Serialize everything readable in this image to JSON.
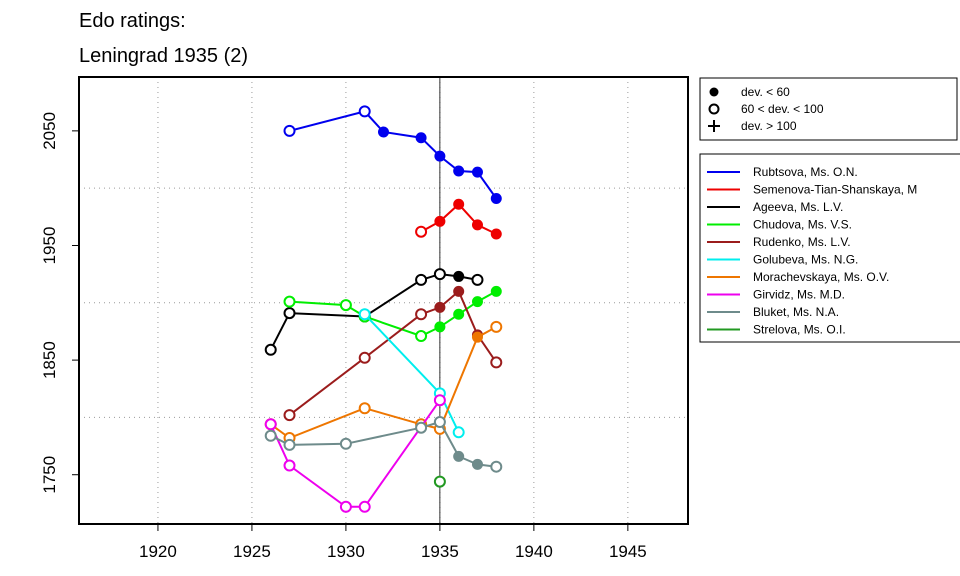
{
  "chart_data": {
    "type": "line",
    "title": [
      "Edo ratings:",
      "Leningrad 1935 (2)"
    ],
    "xlabel": "",
    "ylabel": "",
    "xlim": [
      1915.8,
      1948.2
    ],
    "ylim": [
      1707,
      2097
    ],
    "x_ticks": [
      1920,
      1925,
      1930,
      1935,
      1940,
      1945
    ],
    "y_ticks": [
      1750,
      1850,
      1950,
      2050
    ],
    "x_grid": [
      1920,
      1925,
      1930,
      1935,
      1940,
      1945
    ],
    "y_grid": [
      1800,
      1900,
      2000
    ],
    "grid": true,
    "reference_line_x": 1935,
    "legend_placement": "right",
    "deviation_legend": [
      {
        "marker": "filled",
        "label": "dev. < 60"
      },
      {
        "marker": "open",
        "label": "60 < dev. < 100"
      },
      {
        "marker": "plus",
        "label": "dev. > 100"
      }
    ],
    "series": [
      {
        "name": "Rubtsova, Ms. O.N.",
        "color": "#0000ee",
        "points": [
          [
            1927,
            2050,
            "o"
          ],
          [
            1931,
            2067,
            "o"
          ],
          [
            1932,
            2049,
            "f"
          ],
          [
            1934,
            2044,
            "f"
          ],
          [
            1935,
            2028,
            "f"
          ],
          [
            1936,
            2015,
            "f"
          ],
          [
            1937,
            2014,
            "f"
          ],
          [
            1938,
            1991,
            "f"
          ]
        ]
      },
      {
        "name": "Semenova-Tian-Shanskaya, M",
        "color": "#ee0000",
        "points": [
          [
            1934,
            1962,
            "o"
          ],
          [
            1935,
            1971,
            "f"
          ],
          [
            1936,
            1986,
            "f"
          ],
          [
            1937,
            1968,
            "f"
          ],
          [
            1938,
            1960,
            "f"
          ]
        ]
      },
      {
        "name": "Ageeva, Ms. L.V.",
        "color": "#000000",
        "points": [
          [
            1926,
            1859,
            "o"
          ],
          [
            1927,
            1891,
            "o"
          ],
          [
            1931,
            1888,
            "o"
          ],
          [
            1934,
            1920,
            "o"
          ],
          [
            1935,
            1925,
            "o"
          ],
          [
            1936,
            1923,
            "f"
          ],
          [
            1937,
            1920,
            "o"
          ]
        ]
      },
      {
        "name": "Chudova, Ms. V.S.",
        "color": "#00ee00",
        "points": [
          [
            1927,
            1901,
            "o"
          ],
          [
            1930,
            1898,
            "o"
          ],
          [
            1931,
            1888,
            "o"
          ],
          [
            1934,
            1871,
            "o"
          ],
          [
            1935,
            1879,
            "f"
          ],
          [
            1936,
            1890,
            "f"
          ],
          [
            1937,
            1901,
            "f"
          ],
          [
            1938,
            1910,
            "f"
          ]
        ]
      },
      {
        "name": "Rudenko, Ms. L.V.",
        "color": "#9b1c1c",
        "points": [
          [
            1927,
            1802,
            "o"
          ],
          [
            1931,
            1852,
            "o"
          ],
          [
            1934,
            1890,
            "o"
          ],
          [
            1935,
            1896,
            "f"
          ],
          [
            1936,
            1910,
            "f"
          ],
          [
            1937,
            1872,
            "f"
          ],
          [
            1938,
            1848,
            "o"
          ]
        ]
      },
      {
        "name": "Golubeva, Ms. N.G.",
        "color": "#00eeee",
        "points": [
          [
            1931,
            1890,
            "o"
          ],
          [
            1935,
            1821,
            "o"
          ],
          [
            1936,
            1787,
            "o"
          ]
        ]
      },
      {
        "name": "Morachevskaya, Ms. O.V.",
        "color": "#ee7600",
        "points": [
          [
            1926,
            1794,
            "o"
          ],
          [
            1927,
            1782,
            "o"
          ],
          [
            1931,
            1808,
            "o"
          ],
          [
            1934,
            1794,
            "o"
          ],
          [
            1935,
            1790,
            "o"
          ],
          [
            1937,
            1870,
            "f"
          ],
          [
            1938,
            1879,
            "o"
          ]
        ]
      },
      {
        "name": "Girvidz, Ms. M.D.",
        "color": "#ee00ee",
        "points": [
          [
            1926,
            1794,
            "o"
          ],
          [
            1927,
            1758,
            "o"
          ],
          [
            1930,
            1722,
            "o"
          ],
          [
            1931,
            1722,
            "o"
          ],
          [
            1935,
            1815,
            "o"
          ]
        ]
      },
      {
        "name": "Bluket, Ms. N.A.",
        "color": "#6e8b8b",
        "points": [
          [
            1926,
            1784,
            "o"
          ],
          [
            1927,
            1776,
            "o"
          ],
          [
            1930,
            1777,
            "o"
          ],
          [
            1934,
            1791,
            "o"
          ],
          [
            1935,
            1796,
            "o"
          ],
          [
            1936,
            1766,
            "f"
          ],
          [
            1937,
            1759,
            "f"
          ],
          [
            1938,
            1757,
            "o"
          ]
        ]
      },
      {
        "name": "Strelova, Ms. O.I.",
        "color": "#229922",
        "points": [
          [
            1935,
            1744,
            "o"
          ]
        ]
      }
    ]
  }
}
